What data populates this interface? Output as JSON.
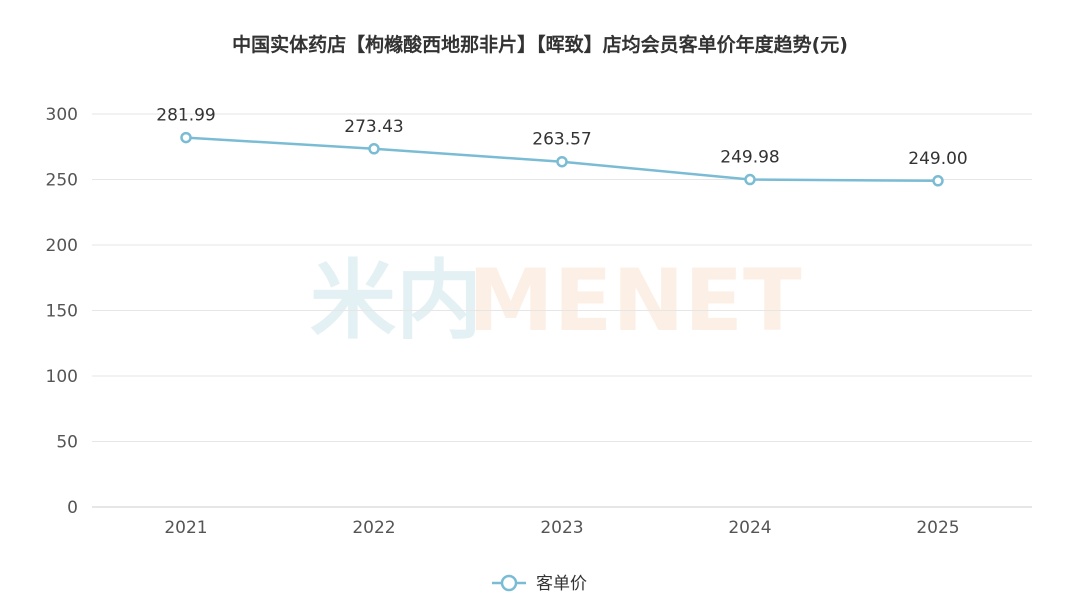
{
  "chart_data": {
    "type": "line",
    "title": "中国实体药店【枸橼酸西地那非片】【晖致】店均会员客单价年度趋势(元)",
    "xlabel": "",
    "ylabel": "",
    "categories": [
      "2021",
      "2022",
      "2023",
      "2024",
      "2025"
    ],
    "series": [
      {
        "name": "客单价",
        "values": [
          281.99,
          273.43,
          263.57,
          249.98,
          249.0
        ],
        "labels": [
          "281.99",
          "273.43",
          "263.57",
          "249.98",
          "249.00"
        ]
      }
    ],
    "ylim": [
      0,
      300
    ],
    "yticks": [
      "0",
      "50",
      "100",
      "150",
      "200",
      "250",
      "300"
    ],
    "grid": true,
    "legend_position": "bottom-center",
    "colors": {
      "line": "#7bbcd5",
      "grid": "#e6e6e6",
      "axis": "#cccccc"
    }
  },
  "watermark": {
    "cn": "米内",
    "en": "MENET"
  }
}
